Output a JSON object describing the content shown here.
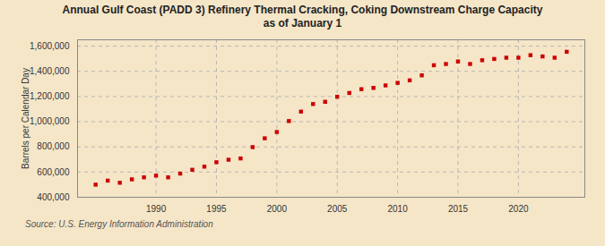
{
  "chart_data": {
    "type": "scatter",
    "title": "Annual Gulf Coast (PADD 3) Refinery Thermal Cracking, Coking Downstream Charge Capacity",
    "subtitle": "as of January 1",
    "ylabel": "Barrels per Calendar Day",
    "source": "Source: U.S. Energy Information Administration",
    "x": [
      1985,
      1986,
      1987,
      1988,
      1989,
      1990,
      1991,
      1992,
      1993,
      1994,
      1995,
      1996,
      1997,
      1998,
      1999,
      2000,
      2001,
      2002,
      2003,
      2004,
      2005,
      2006,
      2007,
      2008,
      2009,
      2010,
      2011,
      2012,
      2013,
      2014,
      2015,
      2016,
      2017,
      2018,
      2019,
      2020,
      2021,
      2022,
      2023,
      2024
    ],
    "values": [
      500000,
      532000,
      515000,
      542000,
      558000,
      572000,
      558000,
      588000,
      618000,
      643000,
      678000,
      698000,
      708000,
      798000,
      868000,
      918000,
      1005000,
      1080000,
      1140000,
      1158000,
      1198000,
      1228000,
      1258000,
      1268000,
      1288000,
      1308000,
      1328000,
      1368000,
      1448000,
      1458000,
      1478000,
      1458000,
      1488000,
      1498000,
      1508000,
      1508000,
      1528000,
      1518000,
      1508000,
      1555000
    ],
    "color": "#cc0000",
    "marker": "square",
    "xlim": [
      1983.5,
      2025.5
    ],
    "xticks": [
      1990,
      1995,
      2000,
      2005,
      2010,
      2015,
      2020
    ],
    "ylim": [
      400000,
      1650000
    ],
    "yticks": [
      {
        "value": 400000,
        "label": "400,000"
      },
      {
        "value": 600000,
        "label": "600,000"
      },
      {
        "value": 800000,
        "label": "800,000"
      },
      {
        "value": 1000000,
        "label": "1,000,000"
      },
      {
        "value": 1200000,
        "label": "1,200,000"
      },
      {
        "value": 1400000,
        "label": "1,400,000"
      },
      {
        "value": 1600000,
        "label": "1,600,000"
      }
    ],
    "grid": true
  }
}
